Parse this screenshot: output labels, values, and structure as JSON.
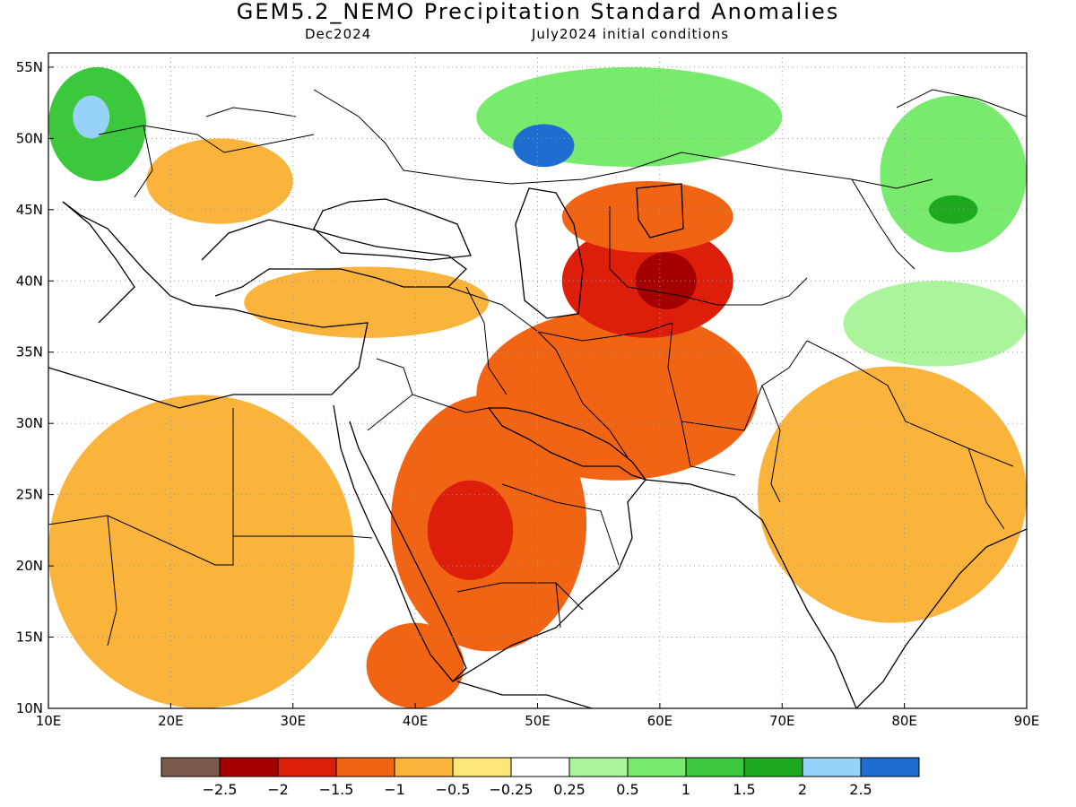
{
  "title": "GEM5.2_NEMO Precipitation Standard Anomalies",
  "subtitle_left": "Dec2024",
  "subtitle_right": "July2024 initial conditions",
  "axes": {
    "x_ticks": [
      "10E",
      "20E",
      "30E",
      "40E",
      "50E",
      "60E",
      "70E",
      "80E",
      "90E"
    ],
    "y_ticks": [
      "55N",
      "50N",
      "45N",
      "40N",
      "35N",
      "30N",
      "25N",
      "20N",
      "15N",
      "10N"
    ],
    "lon_range": [
      10,
      90
    ],
    "lat_range": [
      10,
      56
    ],
    "grid": "dotted"
  },
  "colorbar": {
    "colors": [
      "#7a5a4a",
      "#a50000",
      "#dc1e0a",
      "#f06414",
      "#fab43c",
      "#ffe678",
      "#ffffff",
      "#aaf59b",
      "#78eb6e",
      "#3cc83c",
      "#1eaa1e",
      "#96d2fa",
      "#1e6ed2"
    ],
    "labels": [
      "−2.5",
      "−2",
      "−1.5",
      "−1",
      "−0.5",
      "−0.25",
      "0.25",
      "0.5",
      "1",
      "1.5",
      "2",
      "2.5"
    ]
  },
  "regions": [
    {
      "name": "north-africa-dry",
      "cls": 4,
      "lon": [
        10,
        35
      ],
      "lat": [
        10,
        32
      ]
    },
    {
      "name": "arabia-dry",
      "cls": 3,
      "lon": [
        38,
        54
      ],
      "lat": [
        14,
        32
      ]
    },
    {
      "name": "arabia-core",
      "cls": 2,
      "lon": [
        41,
        48
      ],
      "lat": [
        19,
        26
      ]
    },
    {
      "name": "iran-dry",
      "cls": 3,
      "lon": [
        45,
        68
      ],
      "lat": [
        26,
        38
      ]
    },
    {
      "name": "central-asia-dry",
      "cls": 2,
      "lon": [
        52,
        66
      ],
      "lat": [
        36,
        44
      ]
    },
    {
      "name": "central-asia-core",
      "cls": 1,
      "lon": [
        58,
        63
      ],
      "lat": [
        38,
        42
      ]
    },
    {
      "name": "kazakh-dry",
      "cls": 3,
      "lon": [
        52,
        66
      ],
      "lat": [
        42,
        47
      ]
    },
    {
      "name": "india-dry",
      "cls": 4,
      "lon": [
        68,
        90
      ],
      "lat": [
        16,
        34
      ]
    },
    {
      "name": "ethiopia-dry",
      "cls": 3,
      "lon": [
        36,
        44
      ],
      "lat": [
        10,
        16
      ]
    },
    {
      "name": "turkey-dry",
      "cls": 4,
      "lon": [
        26,
        46
      ],
      "lat": [
        36,
        41
      ]
    },
    {
      "name": "balkans-dry",
      "cls": 4,
      "lon": [
        18,
        30
      ],
      "lat": [
        44,
        50
      ]
    },
    {
      "name": "europe-wet",
      "cls": 9,
      "lon": [
        10,
        18
      ],
      "lat": [
        47,
        55
      ]
    },
    {
      "name": "europe-wet-core",
      "cls": 11,
      "lon": [
        12,
        15
      ],
      "lat": [
        50,
        53
      ]
    },
    {
      "name": "russia-wet",
      "cls": 8,
      "lon": [
        45,
        70
      ],
      "lat": [
        48,
        55
      ]
    },
    {
      "name": "russia-wet-core",
      "cls": 12,
      "lon": [
        48,
        53
      ],
      "lat": [
        48,
        51
      ]
    },
    {
      "name": "mongolia-wet",
      "cls": 8,
      "lon": [
        78,
        90
      ],
      "lat": [
        42,
        53
      ]
    },
    {
      "name": "mongolia-wet-core",
      "cls": 10,
      "lon": [
        82,
        86
      ],
      "lat": [
        44,
        46
      ]
    },
    {
      "name": "tibet-wet",
      "cls": 7,
      "lon": [
        75,
        90
      ],
      "lat": [
        34,
        40
      ]
    }
  ]
}
